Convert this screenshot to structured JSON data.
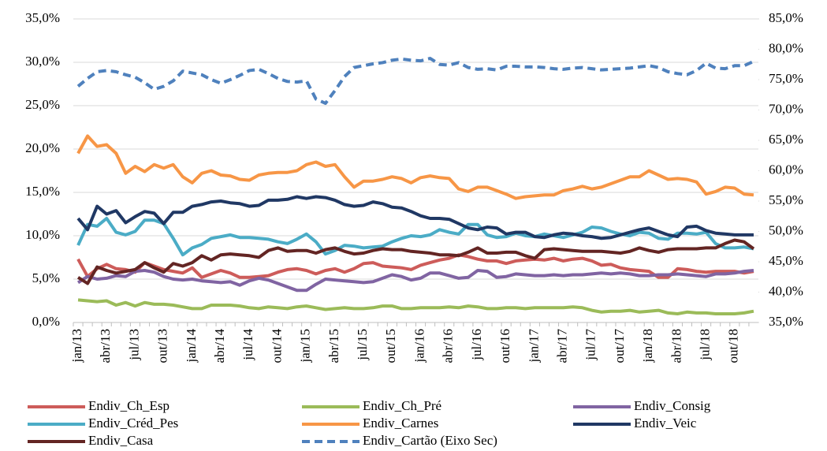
{
  "chart_data": {
    "type": "line",
    "categories": [
      "jan/13",
      null,
      null,
      "abr/13",
      null,
      null,
      "jul/13",
      null,
      null,
      "out/13",
      null,
      null,
      "jan/14",
      null,
      null,
      "abr/14",
      null,
      null,
      "jul/14",
      null,
      null,
      "out/14",
      null,
      null,
      "jan/15",
      null,
      null,
      "abr/15",
      null,
      null,
      "jul/15",
      null,
      null,
      "out/15",
      null,
      null,
      "jan/16",
      null,
      null,
      "abr/16",
      null,
      null,
      "jul/16",
      null,
      null,
      "out/16",
      null,
      null,
      "jan/17",
      null,
      null,
      "abr/17",
      null,
      null,
      "jul/17",
      null,
      null,
      "out/17",
      null,
      null,
      "jan/18",
      null,
      null,
      "abr/18",
      null,
      null,
      "jul/18",
      null,
      null,
      "out/18",
      null,
      null
    ],
    "ylim": [
      0,
      35
    ],
    "yticks": [
      {
        "value": 0,
        "label": "0,0%"
      },
      {
        "value": 5,
        "label": "5,0%"
      },
      {
        "value": 10,
        "label": "10,0%"
      },
      {
        "value": 15,
        "label": "15,0%"
      },
      {
        "value": 20,
        "label": "20,0%"
      },
      {
        "value": 25,
        "label": "25,0%"
      },
      {
        "value": 30,
        "label": "30,0%"
      },
      {
        "value": 35,
        "label": "35,0%"
      }
    ],
    "y2lim": [
      35,
      85
    ],
    "y2ticks": [
      {
        "value": 35,
        "label": "35,0%"
      },
      {
        "value": 40,
        "label": "40,0%"
      },
      {
        "value": 45,
        "label": "45,0%"
      },
      {
        "value": 50,
        "label": "50,0%"
      },
      {
        "value": 55,
        "label": "55,0%"
      },
      {
        "value": 60,
        "label": "60,0%"
      },
      {
        "value": 65,
        "label": "65,0%"
      },
      {
        "value": 70,
        "label": "70,0%"
      },
      {
        "value": 75,
        "label": "75,0%"
      },
      {
        "value": 80,
        "label": "80,0%"
      },
      {
        "value": 85,
        "label": "85,0%"
      }
    ],
    "grid": true,
    "legend": "bottom",
    "series": [
      {
        "name": "Endiv_Ch_Esp",
        "color": "#cd5c5a",
        "values": [
          7.3,
          5.3,
          6.2,
          6.7,
          6.2,
          6.1,
          5.8,
          6.9,
          6.5,
          6.1,
          5.9,
          5.7,
          6.3,
          5.2,
          5.6,
          6,
          5.7,
          5.2,
          5.2,
          5.3,
          5.4,
          5.8,
          6.1,
          6.2,
          6,
          5.6,
          6,
          6.2,
          5.8,
          6.2,
          6.8,
          6.9,
          6.5,
          6.4,
          6.3,
          6.1,
          6.6,
          6.9,
          7.2,
          7.4,
          7.8,
          7.6,
          7.3,
          7.1,
          7.1,
          6.8,
          7.1,
          7.2,
          7.3,
          7.2,
          7.4,
          7.1,
          7.3,
          7.4,
          7.1,
          6.6,
          6.7,
          6.3,
          6.1,
          6,
          5.9,
          5.2,
          5.2,
          6.2,
          6.1,
          5.9,
          5.8,
          5.9,
          5.9,
          5.9,
          5.7,
          5.9
        ]
      },
      {
        "name": "Endiv_Ch_Pré",
        "color": "#9bbb59",
        "values": [
          2.6,
          2.5,
          2.4,
          2.5,
          2.0,
          2.3,
          1.9,
          2.3,
          2.1,
          2.1,
          2.0,
          1.8,
          1.6,
          1.6,
          2.0,
          2.0,
          2.0,
          1.9,
          1.7,
          1.6,
          1.8,
          1.7,
          1.6,
          1.8,
          1.9,
          1.7,
          1.5,
          1.6,
          1.7,
          1.6,
          1.6,
          1.7,
          1.9,
          1.9,
          1.6,
          1.6,
          1.7,
          1.7,
          1.7,
          1.8,
          1.7,
          1.9,
          1.8,
          1.6,
          1.6,
          1.7,
          1.7,
          1.6,
          1.7,
          1.7,
          1.7,
          1.7,
          1.8,
          1.7,
          1.4,
          1.2,
          1.3,
          1.3,
          1.4,
          1.2,
          1.3,
          1.4,
          1.1,
          1.0,
          1.2,
          1.1,
          1.1,
          1.0,
          1.0,
          1.0,
          1.1,
          1.3
        ]
      },
      {
        "name": "Endiv_Consig",
        "color": "#8064a2",
        "values": [
          4.6,
          5.3,
          5.0,
          5.1,
          5.4,
          5.3,
          5.9,
          6.0,
          5.8,
          5.3,
          5.0,
          4.9,
          5.0,
          4.8,
          4.7,
          4.6,
          4.7,
          4.3,
          4.8,
          5.1,
          4.9,
          4.5,
          4.1,
          3.7,
          3.7,
          4.4,
          5.0,
          4.9,
          4.8,
          4.7,
          4.6,
          4.7,
          5.1,
          5.5,
          5.3,
          4.9,
          5.1,
          5.7,
          5.7,
          5.4,
          5.1,
          5.2,
          6.0,
          5.9,
          5.2,
          5.3,
          5.6,
          5.5,
          5.4,
          5.4,
          5.5,
          5.4,
          5.5,
          5.5,
          5.6,
          5.7,
          5.6,
          5.7,
          5.6,
          5.4,
          5.4,
          5.5,
          5.5,
          5.6,
          5.5,
          5.4,
          5.3,
          5.6,
          5.6,
          5.7,
          5.9,
          6.0
        ]
      },
      {
        "name": "Endiv_Créd_Pes",
        "color": "#4bacc6",
        "values": [
          8.9,
          11.3,
          11.1,
          12,
          10.4,
          10.1,
          10.5,
          11.8,
          11.8,
          11.4,
          9.7,
          7.8,
          8.6,
          9,
          9.7,
          9.9,
          10.1,
          9.8,
          9.8,
          9.7,
          9.6,
          9.3,
          9.1,
          9.6,
          10.2,
          9.3,
          7.9,
          8.3,
          8.9,
          8.8,
          8.6,
          8.7,
          8.8,
          9.3,
          9.7,
          10,
          9.9,
          10.1,
          10.7,
          10.4,
          10.2,
          11.3,
          11.3,
          10.1,
          9.8,
          9.9,
          10.3,
          10,
          9.9,
          10.2,
          10,
          9.8,
          10.1,
          10.4,
          11,
          10.9,
          10.5,
          10.2,
          10,
          10.4,
          10.3,
          9.7,
          9.6,
          10.3,
          10.3,
          10.2,
          10.4,
          9.1,
          8.6,
          8.6,
          8.7,
          8.5
        ]
      },
      {
        "name": "Endiv_Carnes",
        "color": "#f79646",
        "values": [
          19.5,
          21.5,
          20.3,
          20.5,
          19.5,
          17.2,
          18,
          17.4,
          18.2,
          17.8,
          18.2,
          16.8,
          16.1,
          17.2,
          17.5,
          17,
          16.9,
          16.5,
          16.4,
          17,
          17.2,
          17.3,
          17.3,
          17.5,
          18.2,
          18.5,
          18,
          18.2,
          16.8,
          15.6,
          16.3,
          16.3,
          16.5,
          16.8,
          16.6,
          16.1,
          16.7,
          16.9,
          16.7,
          16.6,
          15.4,
          15.1,
          15.6,
          15.6,
          15.2,
          14.8,
          14.3,
          14.5,
          14.6,
          14.7,
          14.7,
          15.2,
          15.4,
          15.7,
          15.4,
          15.6,
          16,
          16.4,
          16.8,
          16.8,
          17.5,
          17,
          16.5,
          16.6,
          16.5,
          16.2,
          14.8,
          15.1,
          15.6,
          15.5,
          14.8,
          14.7
        ]
      },
      {
        "name": "Endiv_Veic",
        "color": "#203864",
        "values": [
          12,
          10.7,
          13.4,
          12.5,
          12.9,
          11.5,
          12.2,
          12.8,
          12.6,
          11.4,
          12.7,
          12.7,
          13.4,
          13.6,
          13.9,
          14,
          13.8,
          13.7,
          13.4,
          13.5,
          14.1,
          14.1,
          14.2,
          14.5,
          14.3,
          14.5,
          14.4,
          14.1,
          13.6,
          13.4,
          13.5,
          13.9,
          13.7,
          13.3,
          13.2,
          12.8,
          12.3,
          12,
          12,
          11.9,
          11.4,
          10.9,
          10.7,
          11,
          10.9,
          10.2,
          10.4,
          10.4,
          9.9,
          9.8,
          10.1,
          10.3,
          10.2,
          10,
          9.9,
          9.7,
          9.8,
          10.1,
          10.4,
          10.7,
          10.9,
          10.5,
          10.1,
          9.9,
          11,
          11.1,
          10.6,
          10.3,
          10.2,
          10.1,
          10.1,
          10.1
        ]
      },
      {
        "name": "Endiv_Casa",
        "color": "#632523",
        "values": [
          5.2,
          4.5,
          6.4,
          6.0,
          5.7,
          5.9,
          6.1,
          6.9,
          6.3,
          5.8,
          6.8,
          6.5,
          6.9,
          7.7,
          7.2,
          7.8,
          7.9,
          7.8,
          7.7,
          7.5,
          8.3,
          8.6,
          8.2,
          8.3,
          8.3,
          8.0,
          8.4,
          8.6,
          8.2,
          7.9,
          8.0,
          8.3,
          8.5,
          8.4,
          8.4,
          8.2,
          8.1,
          8.0,
          7.8,
          7.8,
          7.7,
          8.1,
          8.6,
          8.0,
          8.0,
          8.1,
          8.1,
          7.7,
          7.4,
          8.4,
          8.5,
          8.4,
          8.3,
          8.2,
          8.2,
          8.2,
          8.1,
          8.0,
          8.2,
          8.6,
          8.3,
          8.1,
          8.4,
          8.5,
          8.5,
          8.5,
          8.6,
          8.6,
          9.1,
          9.5,
          9.3,
          8.5
        ]
      },
      {
        "name": "Endiv_Cartão (Eixo Sec)",
        "color": "#4f81bd",
        "axis": "y2",
        "line_style": "dashed",
        "values": [
          73.9,
          75.2,
          76.3,
          76.5,
          76.3,
          75.8,
          75.4,
          74.5,
          73.4,
          73.9,
          74.8,
          76.4,
          76.1,
          75.8,
          75,
          74.4,
          75,
          75.7,
          76.5,
          76.7,
          76,
          75.2,
          74.7,
          74.6,
          74.8,
          71.8,
          71.1,
          73.2,
          75.5,
          77,
          77.3,
          77.6,
          77.8,
          78.2,
          78.4,
          78.2,
          78.1,
          78.5,
          77.5,
          77.4,
          77.8,
          77,
          76.7,
          76.8,
          76.6,
          77.2,
          77.2,
          77.1,
          77.1,
          77,
          76.8,
          76.7,
          76.9,
          77,
          76.8,
          76.6,
          76.7,
          76.8,
          76.9,
          77.1,
          77.3,
          77,
          76.3,
          76,
          75.8,
          76.5,
          77.7,
          76.9,
          76.8,
          77.3,
          77.3,
          78
        ]
      }
    ]
  }
}
